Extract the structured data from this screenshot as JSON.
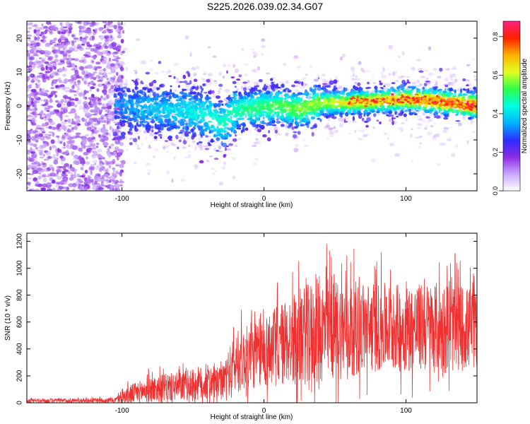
{
  "figure": {
    "title": "S225.2026.039.02.34.G07"
  },
  "chart_data": [
    {
      "type": "heatmap",
      "xlabel": "Height of straight line (km)",
      "ylabel": "Frequency (Hz)",
      "xlim": [
        -167,
        150
      ],
      "ylim": [
        -25,
        25
      ],
      "xticks": [
        -100,
        0,
        100
      ],
      "yticks": [
        -20,
        -10,
        0,
        10,
        20
      ],
      "colorbar": {
        "label": "Normalized spectral amplitude",
        "range": [
          0,
          0.88
        ],
        "ticks": [
          0.0,
          0.2,
          0.4,
          0.6,
          0.8
        ],
        "colors": [
          "#ffffff",
          "#c9a6ff",
          "#8a2be2",
          "#2d2dff",
          "#00b4ff",
          "#00ffe0",
          "#2cff4a",
          "#e2ff20",
          "#ffb000",
          "#ff2000",
          "#ff2080"
        ]
      },
      "noise_region_x": [
        -167,
        -105
      ],
      "signal_trend": [
        {
          "x": -100,
          "y": 0.0
        },
        {
          "x": -75,
          "y": -1.0
        },
        {
          "x": -55,
          "y": -1.5
        },
        {
          "x": -40,
          "y": -2.5
        },
        {
          "x": -30,
          "y": -5.5
        },
        {
          "x": -20,
          "y": -1.5
        },
        {
          "x": -5,
          "y": -0.5
        },
        {
          "x": 10,
          "y": 0.0
        },
        {
          "x": 25,
          "y": -1.0
        },
        {
          "x": 40,
          "y": 1.0
        },
        {
          "x": 60,
          "y": 1.0
        },
        {
          "x": 80,
          "y": 1.5
        },
        {
          "x": 100,
          "y": 2.0
        },
        {
          "x": 120,
          "y": 1.5
        },
        {
          "x": 140,
          "y": 0.5
        },
        {
          "x": 150,
          "y": 0.0
        }
      ]
    },
    {
      "type": "line",
      "xlabel": "Height of straight line (km)",
      "ylabel": "SNR (10 * v/v)",
      "xlim": [
        -167,
        150
      ],
      "ylim": [
        0,
        1260
      ],
      "xticks": [
        -100,
        0,
        100
      ],
      "yticks": [
        0,
        200,
        400,
        600,
        800,
        1000,
        1200
      ],
      "series": [
        {
          "color": "#ee3030",
          "envelope": [
            {
              "x": -167,
              "base": 15,
              "spread": 15
            },
            {
              "x": -105,
              "base": 20,
              "spread": 20
            },
            {
              "x": -95,
              "base": 60,
              "spread": 80
            },
            {
              "x": -80,
              "base": 100,
              "spread": 110
            },
            {
              "x": -60,
              "base": 120,
              "spread": 120
            },
            {
              "x": -40,
              "base": 150,
              "spread": 150
            },
            {
              "x": -30,
              "base": 140,
              "spread": 130
            },
            {
              "x": -20,
              "base": 300,
              "spread": 250
            },
            {
              "x": 0,
              "base": 380,
              "spread": 300
            },
            {
              "x": 20,
              "base": 470,
              "spread": 380
            },
            {
              "x": 40,
              "base": 540,
              "spread": 450
            },
            {
              "x": 70,
              "base": 560,
              "spread": 380
            },
            {
              "x": 100,
              "base": 560,
              "spread": 360
            },
            {
              "x": 130,
              "base": 560,
              "spread": 380
            },
            {
              "x": 150,
              "base": 550,
              "spread": 330
            }
          ]
        }
      ]
    }
  ]
}
